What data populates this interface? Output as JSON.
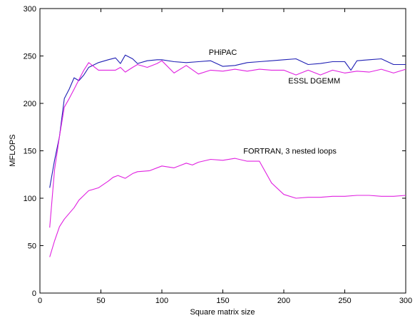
{
  "chart_data": {
    "type": "line",
    "xlabel": "Square matrix size",
    "ylabel": "MFLOPS",
    "xlim": [
      0,
      300
    ],
    "ylim": [
      0,
      300
    ],
    "xticks": [
      0,
      50,
      100,
      150,
      200,
      250,
      300
    ],
    "yticks": [
      0,
      50,
      100,
      150,
      200,
      250,
      300
    ],
    "grid": false,
    "legend": "none",
    "series": [
      {
        "name": "PHiPAC",
        "color": "#1f1fb4",
        "x": [
          8,
          12,
          16,
          20,
          24,
          28,
          32,
          36,
          40,
          48,
          56,
          62,
          66,
          70,
          76,
          80,
          88,
          96,
          100,
          110,
          120,
          130,
          140,
          150,
          160,
          170,
          180,
          190,
          200,
          210,
          220,
          230,
          240,
          250,
          255,
          260,
          270,
          280,
          290,
          300
        ],
        "values": [
          111,
          140,
          165,
          205,
          215,
          227,
          224,
          230,
          238,
          243,
          246,
          248,
          242,
          251,
          247,
          242,
          245,
          246,
          246,
          244,
          243,
          244,
          245,
          239,
          240,
          243,
          244,
          245,
          246,
          247,
          241,
          242,
          244,
          244,
          235,
          245,
          246,
          247,
          241,
          241
        ]
      },
      {
        "name": "ESSL DGEMM",
        "color": "#e020e0",
        "x": [
          8,
          12,
          16,
          20,
          24,
          28,
          32,
          36,
          40,
          48,
          56,
          62,
          66,
          70,
          76,
          80,
          88,
          96,
          100,
          110,
          120,
          130,
          140,
          150,
          160,
          170,
          180,
          190,
          200,
          210,
          220,
          230,
          240,
          250,
          260,
          270,
          280,
          290,
          300
        ],
        "values": [
          69,
          130,
          165,
          196,
          205,
          215,
          225,
          235,
          243,
          235,
          235,
          235,
          238,
          233,
          238,
          241,
          238,
          242,
          245,
          232,
          240,
          231,
          235,
          234,
          236,
          234,
          236,
          235,
          235,
          230,
          235,
          230,
          235,
          232,
          234,
          233,
          236,
          232,
          236
        ]
      },
      {
        "name": "FORTRAN, 3 nested loops",
        "color": "#e020e0",
        "x": [
          8,
          12,
          16,
          20,
          24,
          28,
          32,
          36,
          40,
          48,
          56,
          60,
          64,
          70,
          76,
          80,
          90,
          100,
          110,
          120,
          125,
          130,
          140,
          150,
          160,
          170,
          180,
          190,
          200,
          210,
          220,
          230,
          240,
          250,
          260,
          270,
          280,
          290,
          300
        ],
        "values": [
          38,
          55,
          70,
          78,
          84,
          90,
          98,
          103,
          108,
          111,
          118,
          122,
          124,
          121,
          126,
          128,
          129,
          134,
          132,
          137,
          135,
          138,
          141,
          140,
          142,
          139,
          139,
          116,
          104,
          100,
          101,
          101,
          102,
          102,
          103,
          103,
          102,
          102,
          103
        ]
      }
    ],
    "annotations": [
      {
        "text": "PHiPAC",
        "x": 150,
        "y": 251
      },
      {
        "text": "ESSL DGEMM",
        "x": 225,
        "y": 221
      },
      {
        "text": "FORTRAN, 3 nested loops",
        "x": 205,
        "y": 147
      }
    ]
  }
}
